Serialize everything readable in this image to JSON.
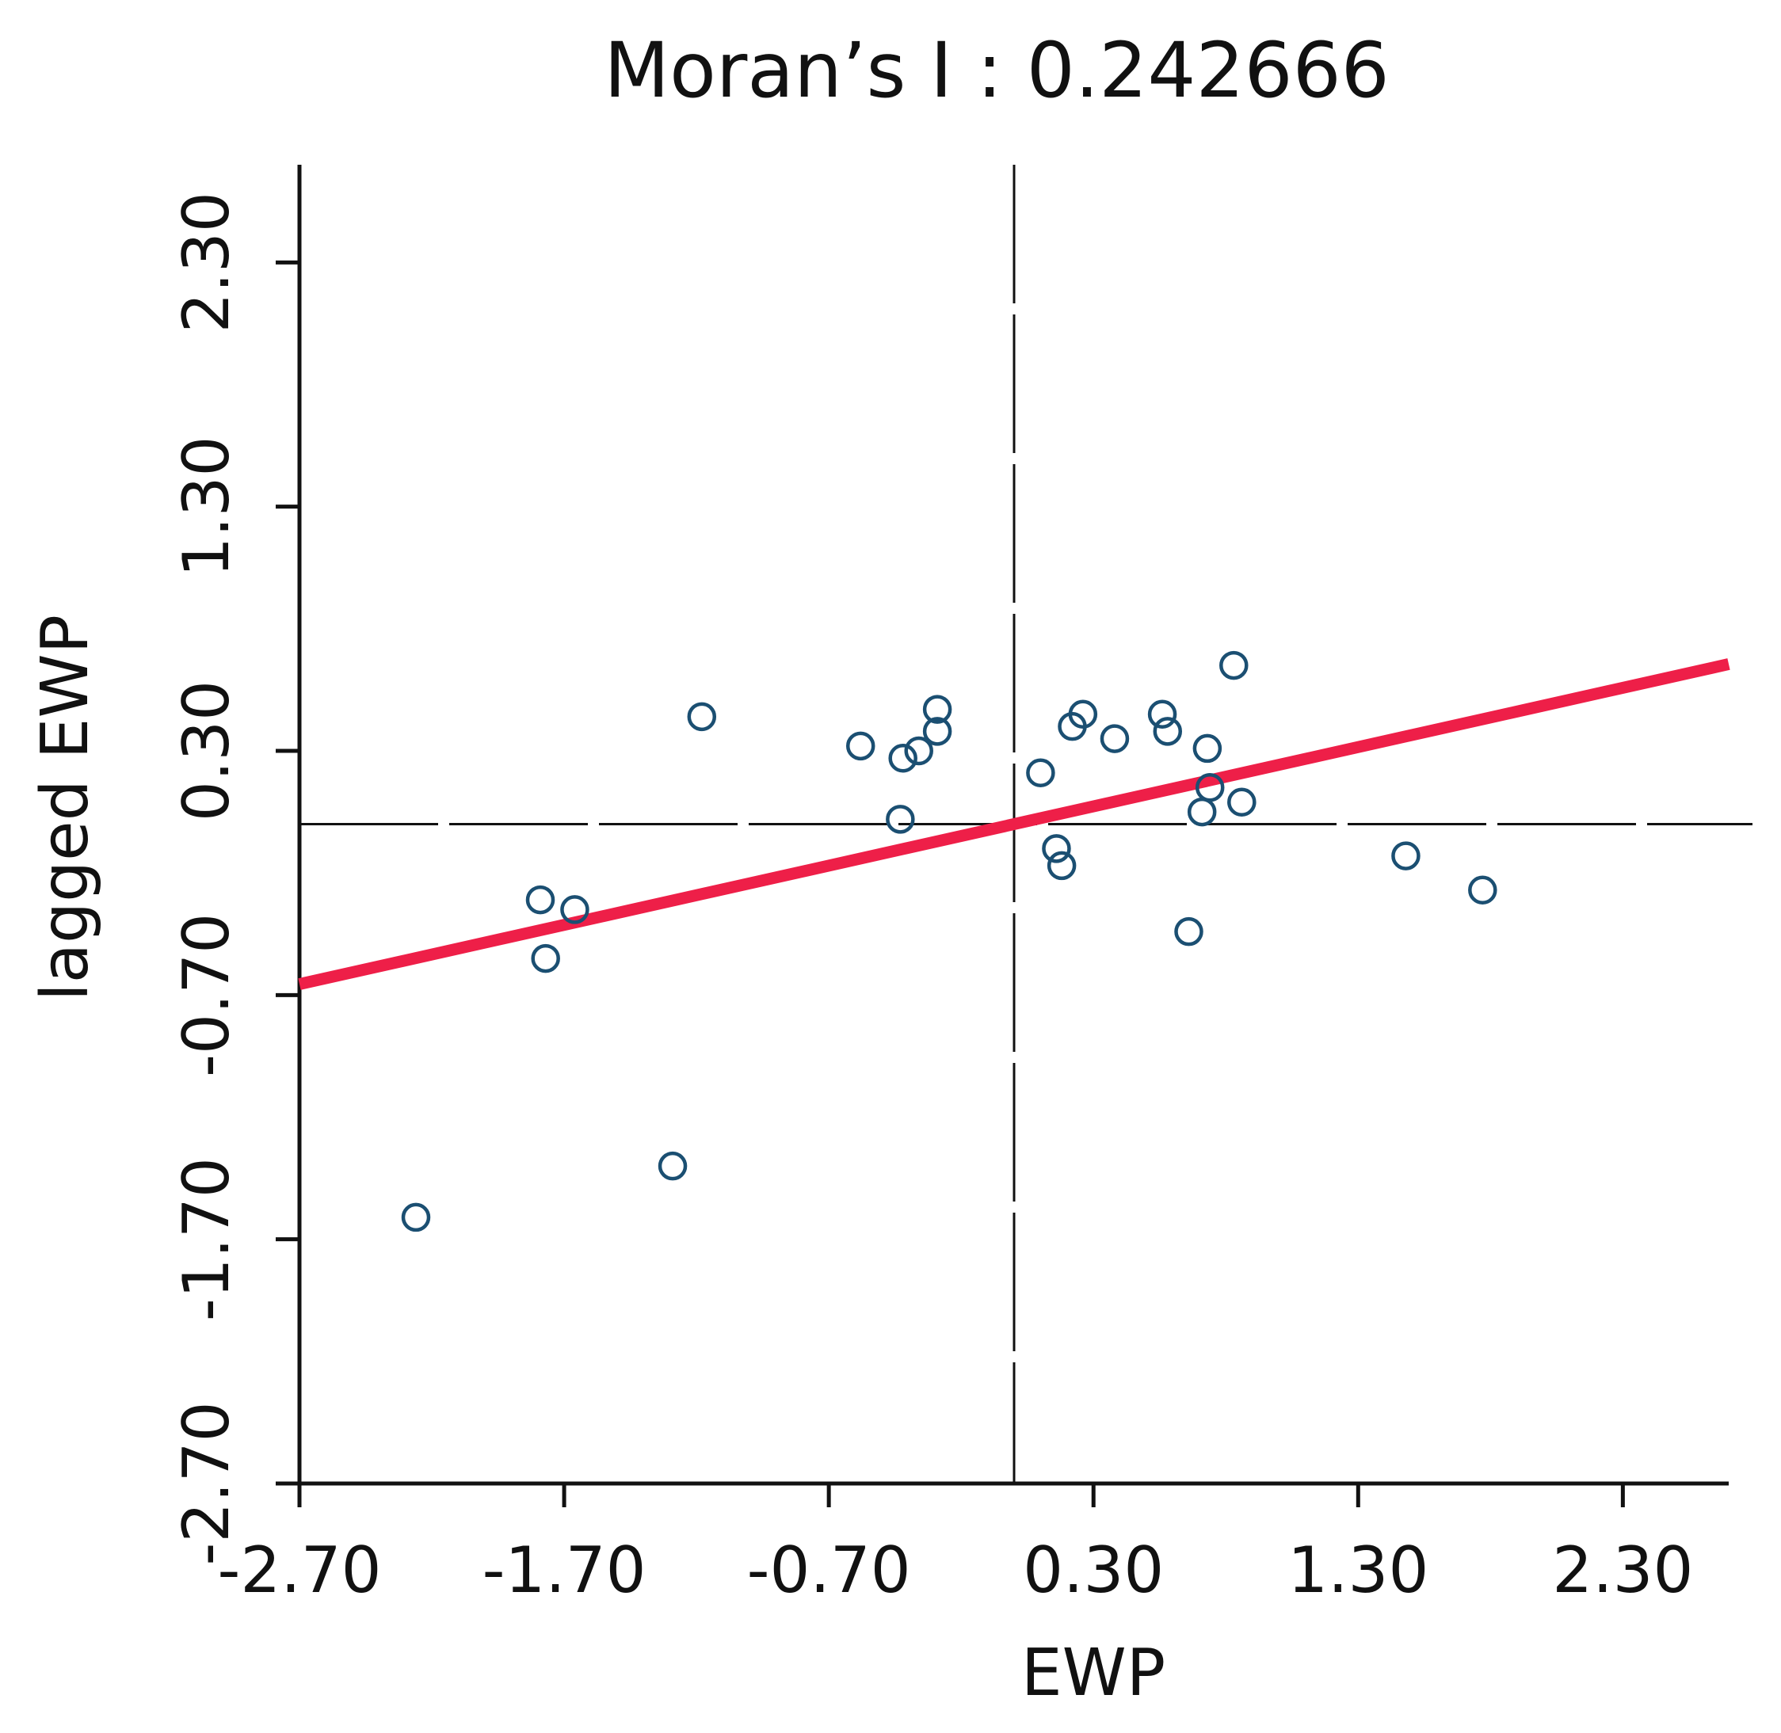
{
  "chart_data": {
    "type": "scatter",
    "title": "Moran’s  I  :  0.242666",
    "xlabel": "EWP",
    "ylabel": "lagged EWP",
    "xlim": [
      -2.7,
      2.7
    ],
    "ylim": [
      -2.7,
      2.7
    ],
    "xticks": [
      "-2.70",
      "-1.70",
      "-0.70",
      "0.30",
      "1.30",
      "2.30"
    ],
    "yticks": [
      "-2.70",
      "-1.70",
      "-0.70",
      "0.30",
      "1.30",
      "2.30"
    ],
    "grid": false,
    "points": [
      {
        "x": -2.26,
        "y": -1.61
      },
      {
        "x": -1.29,
        "y": -1.4
      },
      {
        "x": -1.18,
        "y": 0.44
      },
      {
        "x": -1.77,
        "y": -0.55
      },
      {
        "x": -1.66,
        "y": -0.35
      },
      {
        "x": -1.79,
        "y": -0.31
      },
      {
        "x": -0.58,
        "y": 0.32
      },
      {
        "x": -0.42,
        "y": 0.27
      },
      {
        "x": -0.36,
        "y": 0.3
      },
      {
        "x": -0.29,
        "y": 0.38
      },
      {
        "x": -0.29,
        "y": 0.47
      },
      {
        "x": -0.43,
        "y": 0.02
      },
      {
        "x": 0.1,
        "y": 0.21
      },
      {
        "x": 0.16,
        "y": -0.1
      },
      {
        "x": 0.18,
        "y": -0.17
      },
      {
        "x": 0.22,
        "y": 0.4
      },
      {
        "x": 0.26,
        "y": 0.45
      },
      {
        "x": 0.38,
        "y": 0.35
      },
      {
        "x": 0.56,
        "y": 0.45
      },
      {
        "x": 0.58,
        "y": 0.38
      },
      {
        "x": 0.73,
        "y": 0.31
      },
      {
        "x": 0.74,
        "y": 0.15
      },
      {
        "x": 0.71,
        "y": 0.05
      },
      {
        "x": 0.86,
        "y": 0.09
      },
      {
        "x": 0.83,
        "y": 0.65
      },
      {
        "x": 0.66,
        "y": -0.44
      },
      {
        "x": 1.48,
        "y": -0.13
      },
      {
        "x": 1.77,
        "y": -0.27
      }
    ],
    "regression_line": {
      "slope": 0.242666,
      "intercept": 0.0
    },
    "reference_lines": {
      "x": 0.0,
      "y": 0.0
    },
    "colors": {
      "points": "#1b4f72",
      "regression": "#ee1f48",
      "axes": "#111111"
    }
  }
}
